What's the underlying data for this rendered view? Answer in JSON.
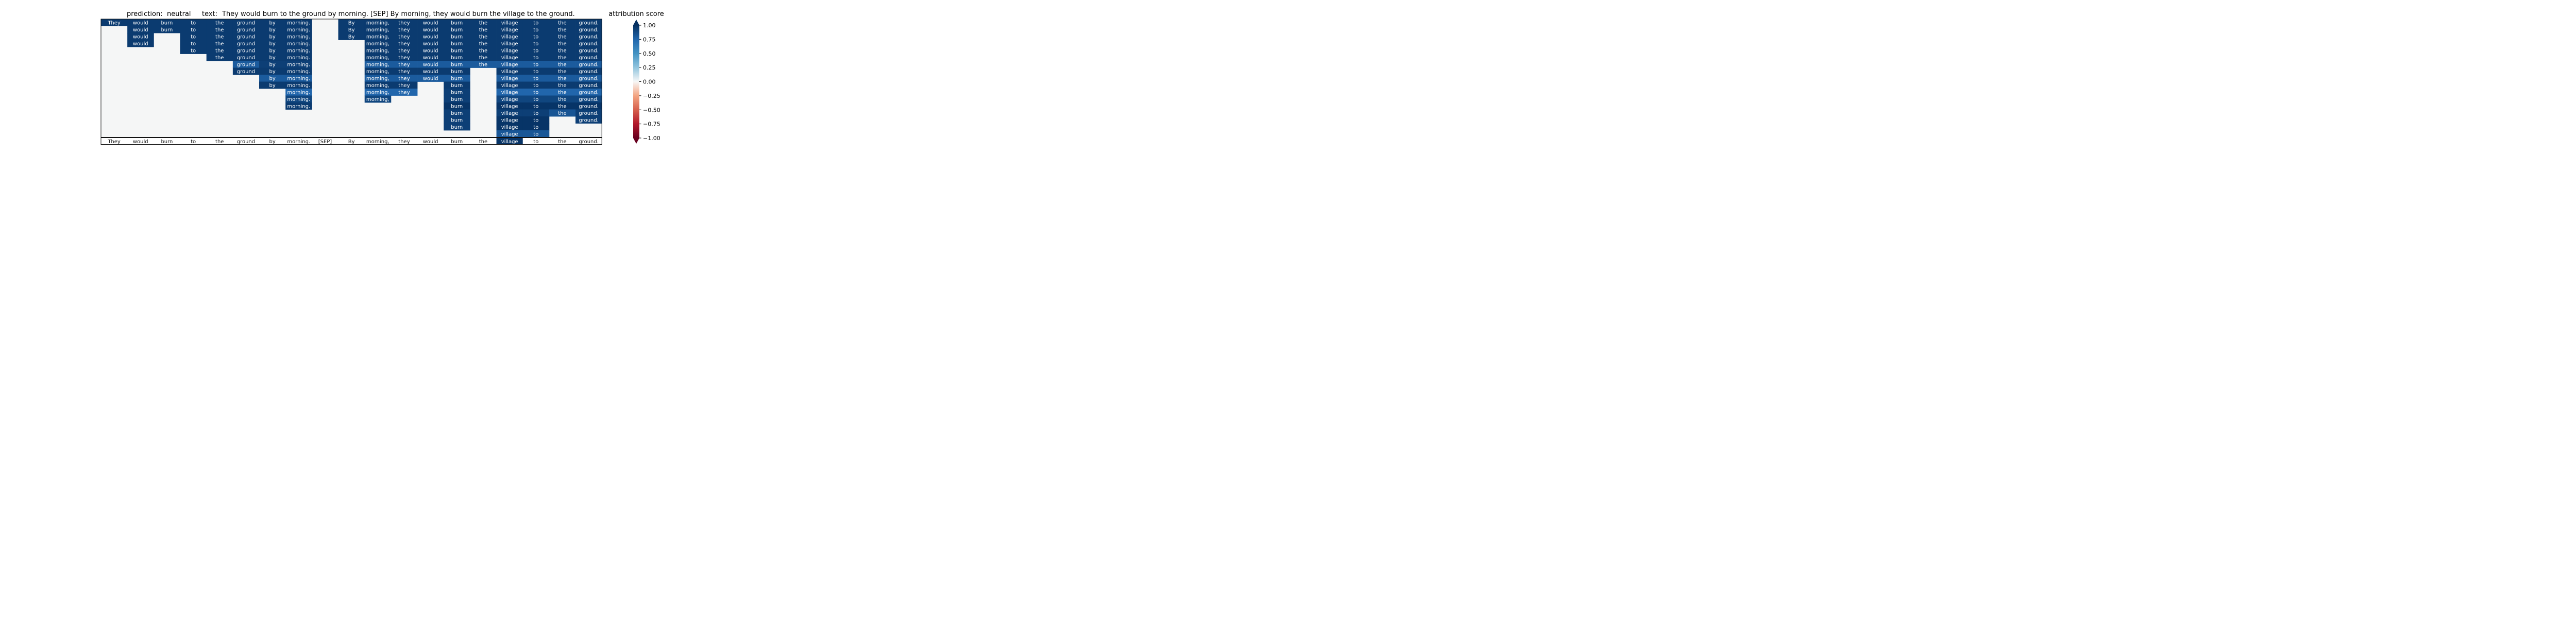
{
  "header": {
    "prediction_label": "prediction:",
    "prediction_value": "neutral",
    "text_label": "text:",
    "text_value": "They would burn to the ground by morning. [SEP] By morning, they would burn the village to the ground.",
    "colorbar_title": "attribution score"
  },
  "colors": {
    "background_cell": "#f5f6f6",
    "grid_line": "#111111"
  },
  "chart_data": {
    "type": "heatmap",
    "colormap": "RdBu",
    "clim": [
      -1.0,
      1.0
    ],
    "colorbar": {
      "label": "attribution score",
      "ticks": [
        1.0,
        0.75,
        0.5,
        0.25,
        0.0,
        -0.25,
        -0.5,
        -0.75,
        -1.0
      ],
      "tick_labels": [
        "1.00",
        "0.75",
        "0.50",
        "0.25",
        "0.00",
        "−0.25",
        "−0.50",
        "−0.75",
        "−1.00"
      ],
      "extend": "both"
    },
    "tokens": [
      "They",
      "would",
      "burn",
      "to",
      "the",
      "ground",
      "by",
      "morning.",
      "[SEP]",
      "By",
      "morning,",
      "they",
      "would",
      "burn",
      "the",
      "village",
      "to",
      "the",
      "ground."
    ],
    "grid": [
      [
        0.95,
        0.95,
        0.95,
        0.95,
        0.95,
        0.95,
        0.95,
        0.95,
        null,
        0.95,
        0.95,
        0.95,
        0.95,
        0.95,
        0.95,
        0.95,
        0.95,
        0.95,
        0.95
      ],
      [
        null,
        0.95,
        0.95,
        0.95,
        0.95,
        0.95,
        0.95,
        0.95,
        null,
        0.95,
        0.95,
        0.95,
        0.95,
        0.95,
        0.95,
        0.95,
        0.95,
        0.95,
        0.95
      ],
      [
        null,
        0.95,
        null,
        0.95,
        0.95,
        0.95,
        0.95,
        0.95,
        null,
        0.95,
        0.95,
        0.95,
        0.95,
        0.95,
        0.95,
        0.95,
        0.95,
        0.95,
        0.95
      ],
      [
        null,
        0.95,
        null,
        0.95,
        0.95,
        0.95,
        0.95,
        0.95,
        null,
        null,
        0.95,
        0.95,
        0.95,
        0.95,
        0.95,
        0.95,
        0.95,
        0.95,
        0.95
      ],
      [
        null,
        null,
        null,
        0.95,
        0.95,
        0.95,
        0.95,
        0.95,
        null,
        null,
        0.95,
        0.95,
        0.95,
        0.95,
        0.95,
        0.95,
        0.95,
        0.95,
        0.95
      ],
      [
        null,
        null,
        null,
        null,
        0.95,
        0.95,
        0.95,
        0.95,
        null,
        null,
        0.95,
        0.95,
        0.95,
        0.95,
        0.95,
        0.95,
        0.95,
        0.95,
        0.95
      ],
      [
        null,
        null,
        null,
        null,
        null,
        0.8,
        0.93,
        0.93,
        null,
        null,
        0.8,
        0.8,
        0.8,
        0.8,
        0.8,
        0.8,
        0.8,
        0.8,
        0.8
      ],
      [
        null,
        null,
        null,
        null,
        null,
        0.95,
        0.95,
        0.95,
        null,
        null,
        0.95,
        0.95,
        0.95,
        0.95,
        null,
        0.95,
        0.95,
        0.95,
        0.95
      ],
      [
        null,
        null,
        null,
        null,
        null,
        null,
        0.8,
        0.8,
        null,
        null,
        0.8,
        0.8,
        0.8,
        0.8,
        null,
        0.8,
        0.8,
        0.8,
        0.8
      ],
      [
        null,
        null,
        null,
        null,
        null,
        null,
        0.95,
        0.95,
        null,
        null,
        0.95,
        0.95,
        null,
        0.95,
        null,
        0.95,
        0.95,
        0.95,
        0.95
      ],
      [
        null,
        null,
        null,
        null,
        null,
        null,
        null,
        0.75,
        null,
        null,
        0.75,
        0.75,
        null,
        0.93,
        null,
        0.75,
        0.75,
        0.75,
        0.75
      ],
      [
        null,
        null,
        null,
        null,
        null,
        null,
        null,
        0.9,
        null,
        null,
        0.9,
        null,
        null,
        0.93,
        null,
        0.9,
        0.9,
        0.9,
        0.9
      ],
      [
        null,
        null,
        null,
        null,
        null,
        null,
        null,
        0.95,
        null,
        null,
        null,
        null,
        null,
        0.98,
        null,
        0.98,
        0.98,
        0.98,
        0.98
      ],
      [
        null,
        null,
        null,
        null,
        null,
        null,
        null,
        null,
        null,
        null,
        null,
        null,
        null,
        0.93,
        null,
        0.93,
        0.93,
        0.83,
        0.93
      ],
      [
        null,
        null,
        null,
        null,
        null,
        null,
        null,
        null,
        null,
        null,
        null,
        null,
        null,
        0.93,
        null,
        0.98,
        0.98,
        null,
        0.93
      ],
      [
        null,
        null,
        null,
        null,
        null,
        null,
        null,
        null,
        null,
        null,
        null,
        null,
        null,
        0.93,
        null,
        0.98,
        0.98,
        null,
        null
      ],
      [
        null,
        null,
        null,
        null,
        null,
        null,
        null,
        null,
        null,
        null,
        null,
        null,
        null,
        null,
        null,
        0.82,
        0.82,
        null,
        null
      ]
    ],
    "bottom_row": [
      null,
      null,
      null,
      null,
      null,
      null,
      null,
      null,
      null,
      null,
      null,
      null,
      null,
      null,
      null,
      0.98,
      null,
      null,
      null
    ]
  }
}
